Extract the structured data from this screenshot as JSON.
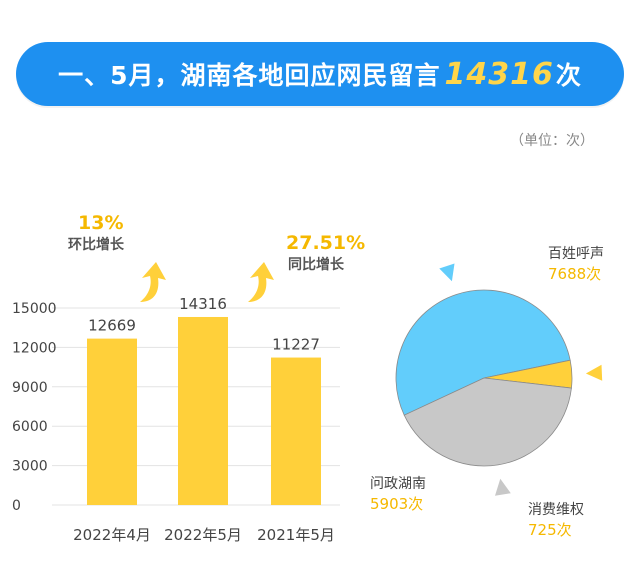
{
  "header": {
    "title_prefix": "一、5月，湖南各地回应网民留言",
    "title_number": "14316",
    "title_suffix": "次"
  },
  "unit_label": "（单位：次）",
  "annotations": {
    "mom": {
      "value": "13%",
      "label": "环比增长"
    },
    "yoy": {
      "value": "27.51%",
      "label": "同比增长"
    }
  },
  "colors": {
    "banner": "#1e90f0",
    "bar": "#ffd03a",
    "accent": "#f5b800",
    "pie_blue": "#62cdfb",
    "pie_gray": "#c8c8c8",
    "pie_yellow": "#ffd03a"
  },
  "chart_data": [
    {
      "type": "bar",
      "categories": [
        "2022年4月",
        "2022年5月",
        "2021年5月"
      ],
      "values": [
        12669,
        14316,
        11227
      ],
      "yticks": [
        0,
        3000,
        6000,
        9000,
        12000,
        15000
      ],
      "ylim": [
        0,
        16500
      ],
      "data_labels": [
        "12669",
        "14316",
        "11227"
      ]
    },
    {
      "type": "pie",
      "slices": [
        {
          "name": "百姓呼声",
          "value": 7688,
          "label": "7688次",
          "color": "#62cdfb"
        },
        {
          "name": "消费维权",
          "value": 725,
          "label": "725次",
          "color": "#ffd03a"
        },
        {
          "name": "问政湖南",
          "value": 5903,
          "label": "5903次",
          "color": "#c8c8c8"
        }
      ]
    }
  ]
}
